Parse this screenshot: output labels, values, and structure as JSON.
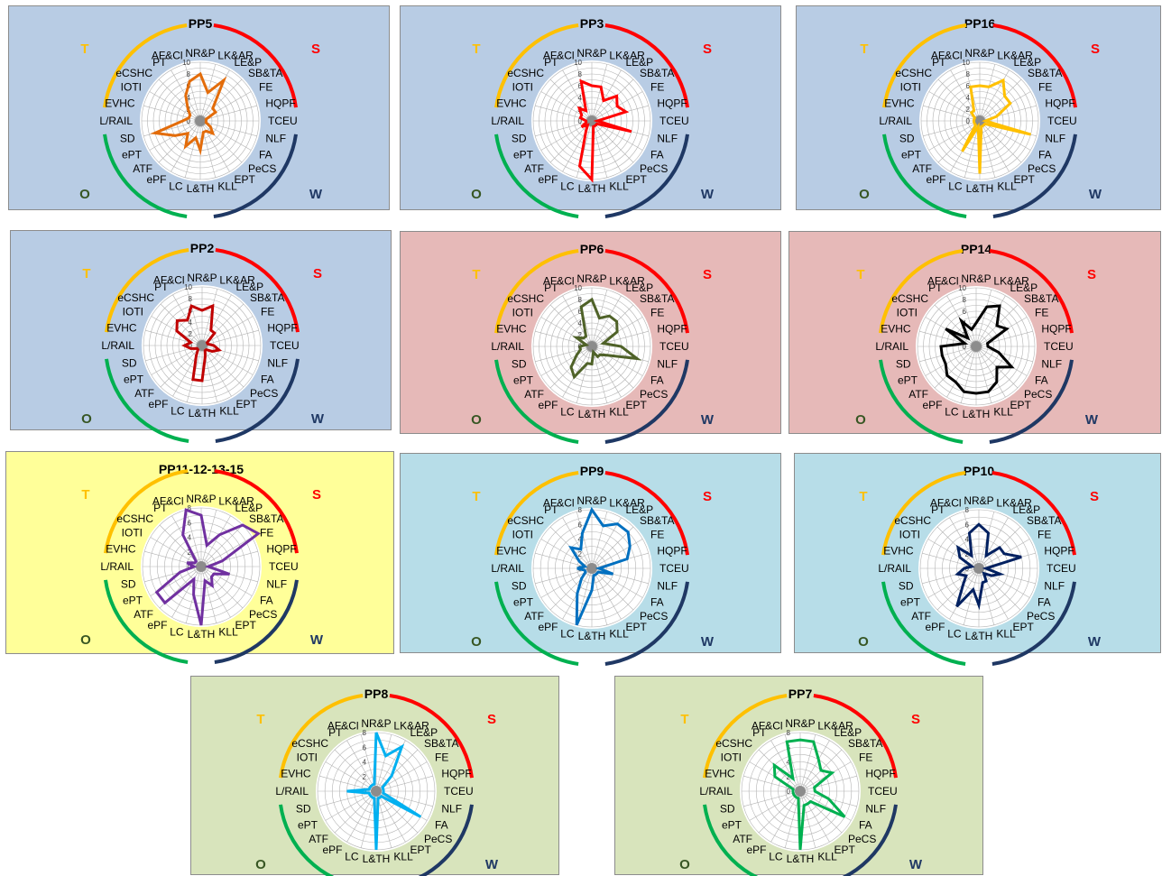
{
  "colors": {
    "T": "#FFC000",
    "S": "#FF0000",
    "O": "#00B050",
    "W": "#1F3864",
    "grid": "#b3b3b3",
    "axisDot": "#8c8c8c"
  },
  "swot_labels": {
    "T": "T",
    "S": "S",
    "O": "O",
    "W": "W"
  },
  "chart_data": [
    {
      "type": "radar",
      "title": "PP5",
      "background": "#B8CCE4",
      "line_color": "#E36C0A",
      "categories": [
        "NR&P",
        "LK&AR",
        "LE&P",
        "SB&TA",
        "FE",
        "HQPF",
        "TCEU",
        "NLF",
        "FA",
        "PeCS",
        "EPT",
        "KLL",
        "L&TH",
        "LC",
        "ePF",
        "ATF",
        "ePT",
        "SD",
        "L/RAIL",
        "EVHC",
        "IOTI",
        "eCSHC",
        "PT",
        "AF&Cl"
      ],
      "values": [
        8,
        5,
        8,
        3,
        3,
        1,
        1,
        1,
        2,
        3,
        2,
        2,
        5,
        3,
        5,
        3,
        5,
        8,
        3,
        2,
        2,
        3,
        5,
        7
      ],
      "rmax": 10,
      "ticks": [
        0,
        2,
        4,
        6,
        8,
        10
      ]
    },
    {
      "type": "radar",
      "title": "PP3",
      "background": "#B8CCE4",
      "line_color": "#FF0000",
      "categories": [
        "NR&P",
        "LK&AR",
        "LE&P",
        "SB&TA",
        "FE",
        "HQPF",
        "TCEU",
        "NLF",
        "FA",
        "PeCS",
        "EPT",
        "KLL",
        "L&TH",
        "LC",
        "ePF",
        "ATF",
        "ePT",
        "SD",
        "L/RAIL",
        "EVHC",
        "IOTI",
        "eCSHC",
        "PT",
        "AF&Cl"
      ],
      "values": [
        6,
        6,
        4,
        6,
        5,
        6,
        1,
        7,
        1,
        1,
        1,
        1,
        10,
        8,
        2,
        1,
        2,
        1,
        1,
        2,
        2,
        3,
        2,
        7
      ],
      "rmax": 10,
      "ticks": [
        0,
        2,
        4,
        6,
        8,
        10
      ]
    },
    {
      "type": "radar",
      "title": "PP16",
      "background": "#B8CCE4",
      "line_color": "#FFC000",
      "categories": [
        "NR&P",
        "LK&AR",
        "LE&P",
        "SB&TA",
        "FE",
        "HQPF",
        "TCEU",
        "NLF",
        "FA",
        "PeCS",
        "EPT",
        "KLL",
        "L&TH",
        "LC",
        "ePF",
        "ATF",
        "ePT",
        "SD",
        "L/RAIL",
        "EVHC",
        "IOTI",
        "eCSHC",
        "PT",
        "AF&Cl"
      ],
      "values": [
        6,
        6,
        8,
        6,
        6,
        3,
        1,
        9,
        1,
        1,
        1,
        1,
        9,
        1,
        6,
        1,
        1,
        1,
        1,
        1,
        1,
        2,
        2,
        6
      ],
      "rmax": 10,
      "ticks": [
        0,
        2,
        4,
        6,
        8,
        10
      ]
    },
    {
      "type": "radar",
      "title": "PP2",
      "background": "#B8CCE4",
      "line_color": "#C00000",
      "categories": [
        "NR&P",
        "LK&AR",
        "LE&P",
        "SB&TA",
        "FE",
        "HQPF",
        "TCEU",
        "NLF",
        "FA",
        "PeCS",
        "EPT",
        "KLL",
        "L&TH",
        "LC",
        "ePF",
        "ATF",
        "ePT",
        "SD",
        "L/RAIL",
        "EVHC",
        "IOTI",
        "eCSHC",
        "PT",
        "AF&Cl"
      ],
      "values": [
        6,
        7,
        3,
        3,
        1,
        1,
        2,
        3,
        2,
        1,
        1,
        2,
        6,
        6,
        2,
        1,
        1,
        2,
        3,
        2,
        5,
        6,
        5,
        7
      ],
      "rmax": 10,
      "ticks": [
        0,
        2,
        4,
        6,
        8,
        10
      ]
    },
    {
      "type": "radar",
      "title": "PP6",
      "background": "#E6B9B8",
      "line_color": "#4F6228",
      "categories": [
        "NR&P",
        "LK&AR",
        "LE&P",
        "SB&TA",
        "FE",
        "HQPF",
        "TCEU",
        "NLF",
        "FA",
        "PeCS",
        "EPT",
        "KLL",
        "L&TH",
        "LC",
        "ePF",
        "ATF",
        "ePT",
        "SD",
        "L/RAIL",
        "EVHC",
        "IOTI",
        "eCSHC",
        "PT",
        "AF&Cl"
      ],
      "values": [
        8,
        5,
        6,
        6,
        5,
        2,
        5,
        8,
        3,
        2,
        2,
        1,
        3,
        3,
        6,
        5,
        3,
        2,
        2,
        1,
        3,
        2,
        2,
        7
      ],
      "rmax": 10,
      "ticks": [
        0,
        2,
        4,
        6,
        8,
        10
      ]
    },
    {
      "type": "radar",
      "title": "PP14",
      "background": "#E6B9B8",
      "line_color": "#000000",
      "categories": [
        "NR&P",
        "LK&AR",
        "LE&P",
        "SB&TA",
        "FE",
        "HQPF",
        "TCEU",
        "NLF",
        "FA",
        "PeCS",
        "EPT",
        "KLL",
        "L&TH",
        "LC",
        "ePF",
        "ATF",
        "ePT",
        "SD",
        "L/RAIL",
        "EVHC",
        "IOTI",
        "eCSHC",
        "PT",
        "AF&Cl"
      ],
      "values": [
        4,
        7,
        8,
        5,
        6,
        2,
        2,
        4,
        7,
        5,
        7,
        8,
        8,
        8,
        7,
        7,
        6,
        6,
        6,
        2,
        6,
        2,
        5,
        3
      ],
      "rmax": 10,
      "ticks": [
        0,
        2,
        4,
        6,
        8,
        10
      ]
    },
    {
      "type": "radar",
      "title": "PP11-12-13-15",
      "background": "#FFFF99",
      "line_color": "#7030A0",
      "categories": [
        "NR&P",
        "LK&AR",
        "LE&P",
        "SB&TA",
        "FE",
        "HQPF",
        "TCEU",
        "NLF",
        "FA",
        "PeCS",
        "EPT",
        "KLL",
        "L&TH",
        "LC",
        "ePF",
        "ATF",
        "ePT",
        "SD",
        "L/RAIL",
        "EVHC",
        "IOTI",
        "eCSHC",
        "PT",
        "AF&Cl"
      ],
      "values": [
        7,
        3,
        5,
        8,
        9,
        3,
        1,
        4,
        2,
        2,
        3,
        2,
        8,
        4,
        2,
        7,
        7,
        3,
        1,
        2,
        1,
        1,
        5,
        8
      ],
      "rmax": 8,
      "ticks": [
        0,
        2,
        4,
        6,
        8
      ]
    },
    {
      "type": "radar",
      "title": "PP9",
      "background": "#B7DDE8",
      "line_color": "#0070C0",
      "categories": [
        "NR&P",
        "LK&AR",
        "LE&P",
        "SB&TA",
        "FE",
        "HQPF",
        "TCEU",
        "NLF",
        "FA",
        "PeCS",
        "EPT",
        "KLL",
        "L&TH",
        "LC",
        "ePF",
        "ATF",
        "ePT",
        "SD",
        "L/RAIL",
        "EVHC",
        "IOTI",
        "eCSHC",
        "PT",
        "AF&Cl"
      ],
      "values": [
        8,
        6,
        7,
        7,
        6,
        5,
        1,
        3,
        1,
        1,
        1,
        1,
        3,
        8,
        4,
        2,
        1,
        1,
        2,
        1,
        2,
        4,
        3,
        5
      ],
      "rmax": 8,
      "ticks": [
        0,
        2,
        4,
        6,
        8
      ]
    },
    {
      "type": "radar",
      "title": "PP10",
      "background": "#B7DDE8",
      "line_color": "#002060",
      "categories": [
        "NR&P",
        "LK&AR",
        "LE&P",
        "SB&TA",
        "FE",
        "HQPF",
        "TCEU",
        "NLF",
        "FA",
        "PeCS",
        "EPT",
        "KLL",
        "L&TH",
        "LC",
        "ePF",
        "ATF",
        "ePT",
        "SD",
        "L/RAIL",
        "EVHC",
        "IOTI",
        "eCSHC",
        "PT",
        "AF&Cl"
      ],
      "values": [
        6,
        5,
        2,
        4,
        4,
        6,
        1,
        3,
        2,
        1,
        2,
        2,
        5,
        3,
        6,
        3,
        2,
        3,
        2,
        1,
        3,
        4,
        2,
        5
      ],
      "rmax": 8,
      "ticks": [
        0,
        2,
        4,
        6,
        8
      ]
    },
    {
      "type": "radar",
      "title": "PP8",
      "background": "#D8E4BC",
      "line_color": "#00B0F0",
      "categories": [
        "NR&P",
        "LK&AR",
        "LE&P",
        "SB&TA",
        "FE",
        "HQPF",
        "TCEU",
        "NLF",
        "FA",
        "PeCS",
        "EPT",
        "KLL",
        "L&TH",
        "LC",
        "ePF",
        "ATF",
        "ePT",
        "SD",
        "L/RAIL",
        "EVHC",
        "IOTI",
        "eCSHC",
        "PT",
        "AF&Cl"
      ],
      "values": [
        8,
        5,
        7,
        3,
        1,
        1,
        1,
        1,
        7,
        1,
        1,
        1,
        8,
        1,
        1,
        1,
        1,
        1,
        4,
        1,
        1,
        1,
        1,
        1
      ],
      "rmax": 8,
      "ticks": [
        0,
        2,
        4,
        6,
        8
      ]
    },
    {
      "type": "radar",
      "title": "PP7",
      "background": "#D8E4BC",
      "line_color": "#00B050",
      "categories": [
        "NR&P",
        "LK&AR",
        "LE&P",
        "SB&TA",
        "FE",
        "HQPF",
        "TCEU",
        "NLF",
        "FA",
        "PeCS",
        "EPT",
        "KLL",
        "L&TH",
        "LC",
        "ePF",
        "ATF",
        "ePT",
        "SD",
        "L/RAIL",
        "EVHC",
        "IOTI",
        "eCSHC",
        "PT",
        "AF&Cl"
      ],
      "values": [
        7,
        7,
        5,
        4,
        5,
        2,
        2,
        4,
        7,
        2,
        2,
        2,
        8,
        1,
        1,
        1,
        1,
        1,
        1,
        1,
        4,
        5,
        2,
        7
      ],
      "rmax": 8,
      "ticks": [
        0,
        2,
        4,
        6,
        8
      ]
    }
  ]
}
